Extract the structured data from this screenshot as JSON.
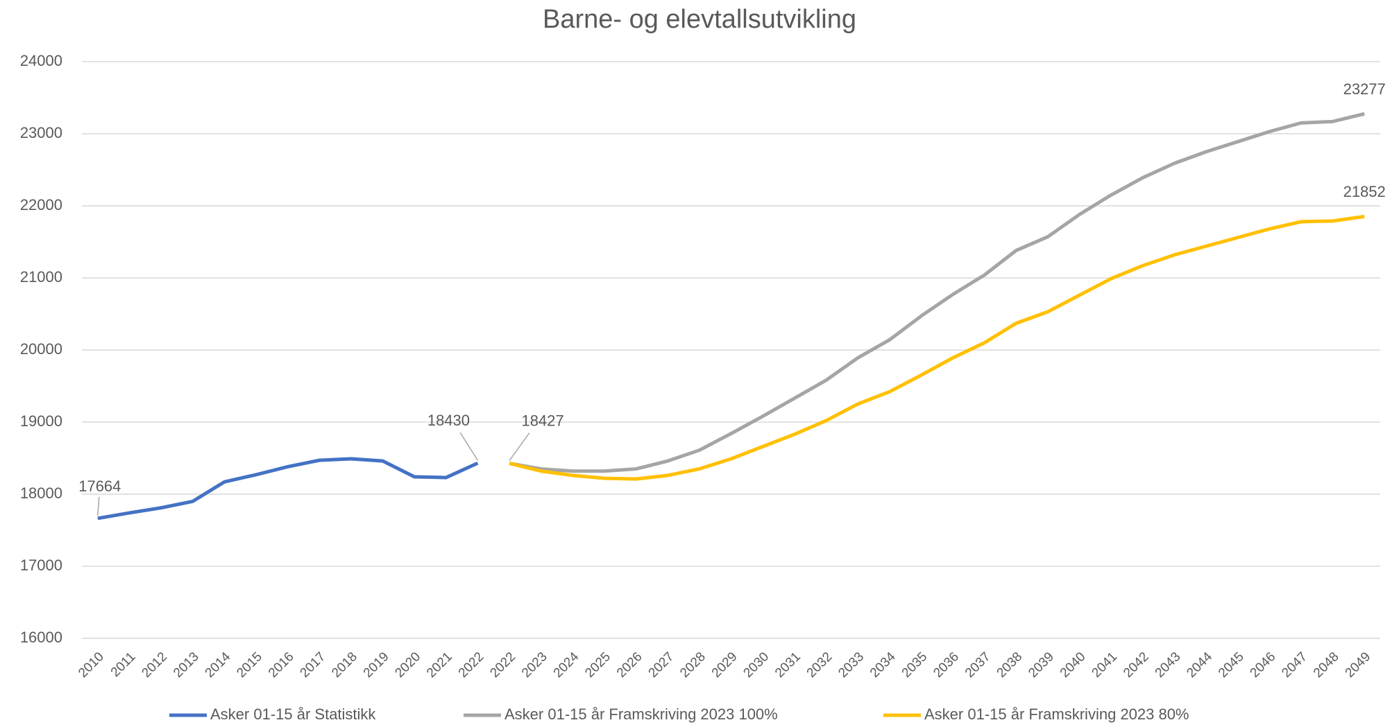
{
  "chart_data": {
    "type": "line",
    "title": "Barne- og elevtallsutvikling",
    "categories": [
      "2010",
      "2011",
      "2012",
      "2013",
      "2014",
      "2015",
      "2016",
      "2017",
      "2018",
      "2019",
      "2020",
      "2021",
      "2022",
      "2022",
      "2023",
      "2024",
      "2025",
      "2026",
      "2027",
      "2028",
      "2029",
      "2030",
      "2031",
      "2032",
      "2033",
      "2034",
      "2035",
      "2036",
      "2037",
      "2038",
      "2039",
      "2040",
      "2041",
      "2042",
      "2043",
      "2044",
      "2045",
      "2046",
      "2047",
      "2048",
      "2049"
    ],
    "series": [
      {
        "name": "Asker 01-15 år Statistikk",
        "color": "#4472c4",
        "labels_at": [
          0,
          12
        ],
        "values": [
          17664,
          17740,
          17810,
          17900,
          18170,
          18270,
          18380,
          18470,
          18490,
          18460,
          18240,
          18230,
          18430,
          null,
          null,
          null,
          null,
          null,
          null,
          null,
          null,
          null,
          null,
          null,
          null,
          null,
          null,
          null,
          null,
          null,
          null,
          null,
          null,
          null,
          null,
          null,
          null,
          null,
          null,
          null,
          null
        ]
      },
      {
        "name": "Asker 01-15 år Framskriving 2023 100%",
        "color": "#a5a5a5",
        "labels_at": [
          13,
          40
        ],
        "values": [
          null,
          null,
          null,
          null,
          null,
          null,
          null,
          null,
          null,
          null,
          null,
          null,
          null,
          18427,
          18350,
          18320,
          18320,
          18350,
          18460,
          18610,
          18840,
          19080,
          19330,
          19580,
          19890,
          20140,
          20470,
          20770,
          21040,
          21380,
          21570,
          21880,
          22150,
          22390,
          22590,
          22750,
          22890,
          23030,
          23150,
          23170,
          23277
        ]
      },
      {
        "name": "Asker 01-15 år Framskriving 2023 80%",
        "color": "#ffc000",
        "labels_at": [
          40
        ],
        "values": [
          null,
          null,
          null,
          null,
          null,
          null,
          null,
          null,
          null,
          null,
          null,
          null,
          null,
          18427,
          18320,
          18260,
          18220,
          18210,
          18260,
          18350,
          18490,
          18660,
          18830,
          19020,
          19250,
          19420,
          19650,
          19890,
          20100,
          20370,
          20530,
          20760,
          20990,
          21170,
          21320,
          21440,
          21560,
          21680,
          21780,
          21790,
          21852
        ]
      }
    ],
    "ylim": [
      16000,
      24000
    ],
    "yticks": [
      16000,
      17000,
      18000,
      19000,
      20000,
      21000,
      22000,
      23000,
      24000
    ],
    "grid": true,
    "legend": "bottom"
  }
}
